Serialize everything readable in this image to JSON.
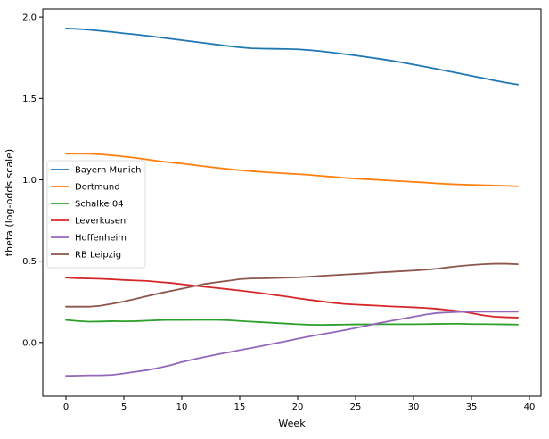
{
  "chart_data": {
    "type": "line",
    "xlabel": "Week",
    "ylabel": "theta (log-odds scale)",
    "xlim": [
      -2,
      41
    ],
    "ylim": [
      -0.33,
      2.05
    ],
    "xticks": [
      0,
      5,
      10,
      15,
      20,
      25,
      30,
      35,
      40
    ],
    "xtick_labels": [
      "0",
      "5",
      "10",
      "15",
      "20",
      "25",
      "30",
      "35",
      "40"
    ],
    "yticks": [
      0.0,
      0.5,
      1.0,
      1.5,
      2.0
    ],
    "ytick_labels": [
      "0.0",
      "0.5",
      "1.0",
      "1.5",
      "2.0"
    ],
    "grid": false,
    "legend_position": "center-left",
    "x": [
      0,
      1,
      2,
      3,
      4,
      5,
      6,
      7,
      8,
      9,
      10,
      11,
      12,
      13,
      14,
      15,
      16,
      17,
      18,
      19,
      20,
      21,
      22,
      23,
      24,
      25,
      26,
      27,
      28,
      29,
      30,
      31,
      32,
      33,
      34,
      35,
      36,
      37,
      38,
      39
    ],
    "series": [
      {
        "name": "Bayern Munich",
        "color": "#1f77b4",
        "values": [
          1.93,
          1.927,
          1.922,
          1.915,
          1.908,
          1.9,
          1.893,
          1.885,
          1.876,
          1.867,
          1.858,
          1.849,
          1.84,
          1.831,
          1.822,
          1.814,
          1.808,
          1.806,
          1.805,
          1.804,
          1.802,
          1.797,
          1.79,
          1.782,
          1.773,
          1.764,
          1.754,
          1.744,
          1.733,
          1.721,
          1.708,
          1.695,
          1.681,
          1.667,
          1.653,
          1.639,
          1.625,
          1.61,
          1.597,
          1.585
        ]
      },
      {
        "name": "Dortmund",
        "color": "#ff7f0e",
        "values": [
          1.16,
          1.161,
          1.16,
          1.156,
          1.15,
          1.143,
          1.135,
          1.125,
          1.115,
          1.107,
          1.1,
          1.091,
          1.082,
          1.074,
          1.066,
          1.059,
          1.053,
          1.048,
          1.043,
          1.039,
          1.035,
          1.03,
          1.024,
          1.018,
          1.012,
          1.007,
          1.003,
          0.999,
          0.995,
          0.991,
          0.987,
          0.983,
          0.978,
          0.974,
          0.971,
          0.969,
          0.967,
          0.965,
          0.963,
          0.96
        ]
      },
      {
        "name": "Schalke 04",
        "color": "#2ca02c",
        "values": [
          0.138,
          0.132,
          0.128,
          0.129,
          0.131,
          0.13,
          0.131,
          0.134,
          0.137,
          0.139,
          0.138,
          0.139,
          0.14,
          0.139,
          0.137,
          0.132,
          0.128,
          0.124,
          0.12,
          0.116,
          0.112,
          0.109,
          0.108,
          0.109,
          0.11,
          0.111,
          0.111,
          0.112,
          0.112,
          0.112,
          0.112,
          0.113,
          0.114,
          0.115,
          0.115,
          0.113,
          0.113,
          0.112,
          0.111,
          0.11
        ]
      },
      {
        "name": "Leverkusen",
        "color": "#d62728",
        "values": [
          0.398,
          0.395,
          0.393,
          0.391,
          0.388,
          0.384,
          0.381,
          0.378,
          0.372,
          0.366,
          0.358,
          0.35,
          0.342,
          0.335,
          0.327,
          0.319,
          0.311,
          0.302,
          0.292,
          0.283,
          0.272,
          0.262,
          0.253,
          0.244,
          0.237,
          0.233,
          0.229,
          0.226,
          0.222,
          0.219,
          0.216,
          0.212,
          0.207,
          0.2,
          0.192,
          0.18,
          0.167,
          0.158,
          0.155,
          0.153
        ]
      },
      {
        "name": "Hoffenheim",
        "color": "#9467bd",
        "values": [
          -0.205,
          -0.204,
          -0.202,
          -0.202,
          -0.199,
          -0.19,
          -0.18,
          -0.17,
          -0.156,
          -0.14,
          -0.12,
          -0.104,
          -0.089,
          -0.074,
          -0.061,
          -0.047,
          -0.034,
          -0.02,
          -0.006,
          0.008,
          0.023,
          0.037,
          0.05,
          0.062,
          0.075,
          0.089,
          0.104,
          0.119,
          0.132,
          0.145,
          0.158,
          0.171,
          0.181,
          0.185,
          0.188,
          0.189,
          0.189,
          0.189,
          0.189,
          0.189
        ]
      },
      {
        "name": "RB Leipzig",
        "color": "#8c564b",
        "values": [
          0.22,
          0.22,
          0.22,
          0.226,
          0.238,
          0.252,
          0.268,
          0.285,
          0.301,
          0.316,
          0.33,
          0.345,
          0.36,
          0.37,
          0.379,
          0.389,
          0.393,
          0.394,
          0.396,
          0.398,
          0.4,
          0.404,
          0.409,
          0.413,
          0.417,
          0.421,
          0.425,
          0.43,
          0.434,
          0.438,
          0.442,
          0.447,
          0.453,
          0.462,
          0.47,
          0.476,
          0.481,
          0.484,
          0.484,
          0.481
        ]
      }
    ]
  }
}
